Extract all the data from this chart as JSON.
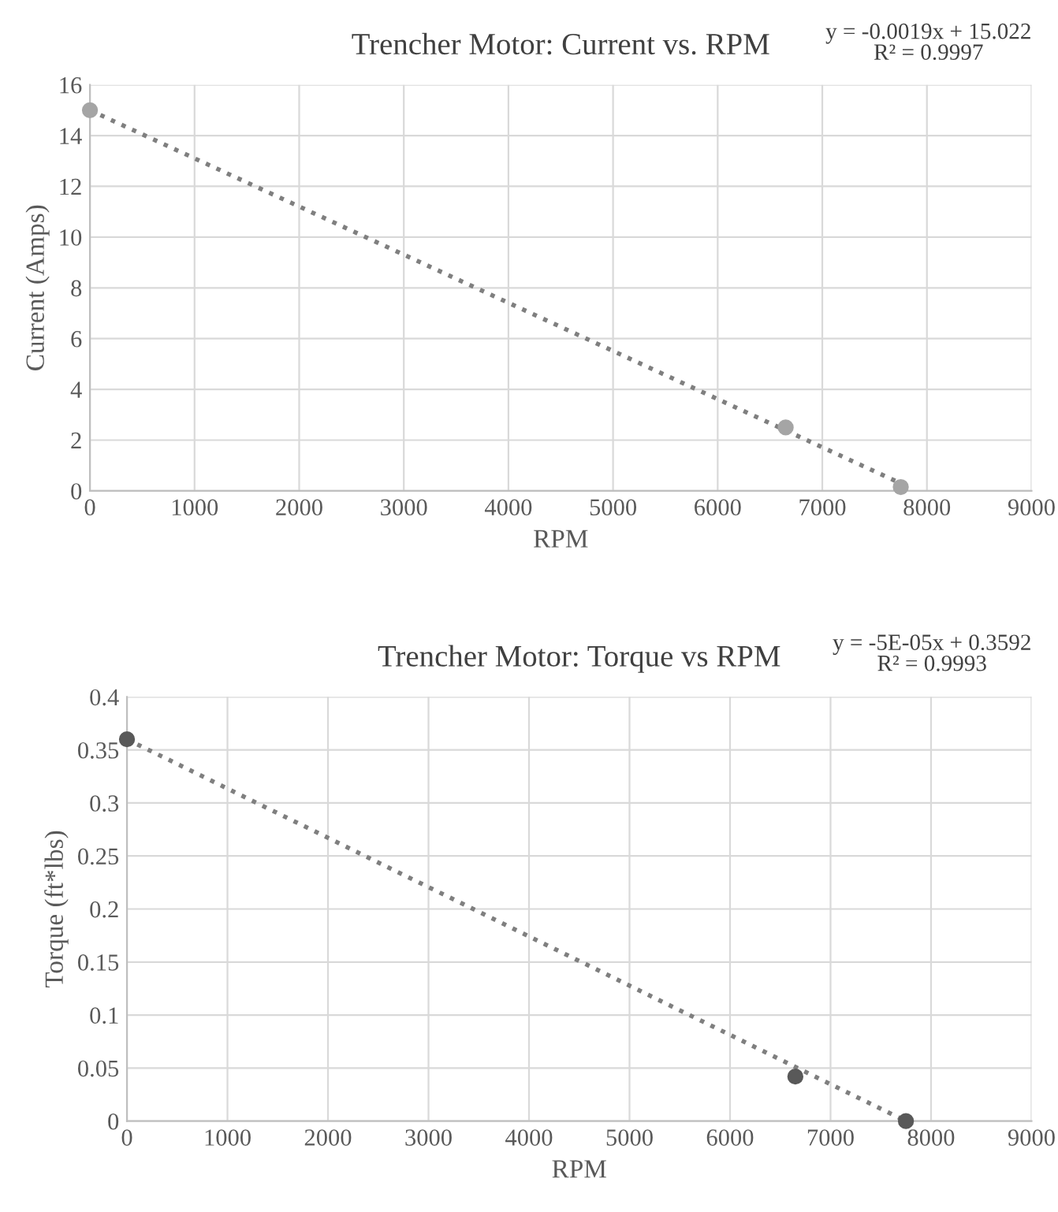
{
  "chart_data": [
    {
      "type": "scatter",
      "title": "Trencher Motor: Current vs. RPM",
      "xlabel": "RPM",
      "ylabel": "Current (Amps)",
      "annotations": [
        "y = -0.0019x + 15.022\nR² = 0.9997"
      ],
      "series": [
        {
          "color": "#a5a5a5",
          "marker": "circle",
          "x": [
            0,
            6650,
            7750
          ],
          "values": [
            15,
            2.5,
            0.15
          ]
        },
        {
          "type": "line",
          "color": "#7f7f7f",
          "line_style": "dotted",
          "x": [
            0,
            7800
          ],
          "values": [
            15,
            0.2
          ]
        }
      ],
      "xlim": [
        0,
        9000
      ],
      "xticks": [
        0,
        1000,
        2000,
        3000,
        4000,
        5000,
        6000,
        7000,
        8000,
        9000
      ],
      "ylim": [
        0,
        16
      ],
      "yticks": [
        0,
        2,
        4,
        6,
        8,
        10,
        12,
        14,
        16
      ],
      "grid": true,
      "legend": false
    },
    {
      "type": "scatter",
      "title": "Trencher Motor: Torque vs RPM",
      "xlabel": "RPM",
      "ylabel": "Torque (ft*lbs)",
      "annotations": [
        "y = -5E-05x + 0.3592\nR² = 0.9993"
      ],
      "series": [
        {
          "color": "#595959",
          "marker": "circle",
          "x": [
            0,
            6650,
            7750
          ],
          "values": [
            0.36,
            0.042,
            0
          ]
        },
        {
          "type": "line",
          "color": "#7f7f7f",
          "line_style": "dotted",
          "x": [
            0,
            7750
          ],
          "values": [
            0.36,
            0
          ]
        }
      ],
      "xlim": [
        0,
        9000
      ],
      "xticks": [
        0,
        1000,
        2000,
        3000,
        4000,
        5000,
        6000,
        7000,
        8000,
        9000
      ],
      "ylim": [
        0,
        0.4
      ],
      "yticks": [
        0,
        0.05,
        0.1,
        0.15,
        0.2,
        0.25,
        0.3,
        0.35,
        0.4
      ],
      "grid": true,
      "legend": false
    }
  ]
}
